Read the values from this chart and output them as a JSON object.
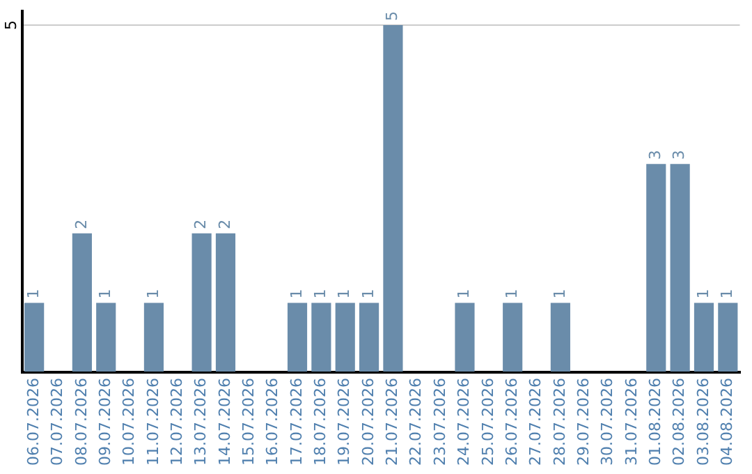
{
  "chart_data": {
    "type": "bar",
    "categories": [
      "06.07.2026",
      "07.07.2026",
      "08.07.2026",
      "09.07.2026",
      "10.07.2026",
      "11.07.2026",
      "12.07.2026",
      "13.07.2026",
      "14.07.2026",
      "15.07.2026",
      "16.07.2026",
      "17.07.2026",
      "18.07.2026",
      "19.07.2026",
      "20.07.2026",
      "21.07.2026",
      "22.07.2026",
      "23.07.2026",
      "24.07.2026",
      "25.07.2026",
      "26.07.2026",
      "27.07.2026",
      "28.07.2026",
      "29.07.2026",
      "30.07.2026",
      "31.07.2026",
      "01.08.2026",
      "02.08.2026",
      "03.08.2026",
      "04.08.2026"
    ],
    "values": [
      1,
      0,
      2,
      1,
      0,
      1,
      0,
      2,
      2,
      0,
      0,
      1,
      1,
      1,
      1,
      5,
      0,
      0,
      1,
      0,
      1,
      0,
      1,
      0,
      0,
      0,
      3,
      3,
      1,
      1
    ],
    "value_labels": [
      "1",
      null,
      "2",
      "1",
      null,
      "1",
      null,
      "2",
      "2",
      null,
      null,
      "1",
      "1",
      "1",
      "1",
      "5",
      null,
      null,
      "1",
      null,
      "1",
      null,
      "1",
      null,
      null,
      null,
      "3",
      "3",
      "1",
      "1"
    ],
    "color": "#6a8caa",
    "ylim": [
      0,
      5.2
    ],
    "yticks": [
      {
        "value": 0,
        "label": null
      },
      5
    ],
    "grid": "y",
    "legend": false
  }
}
